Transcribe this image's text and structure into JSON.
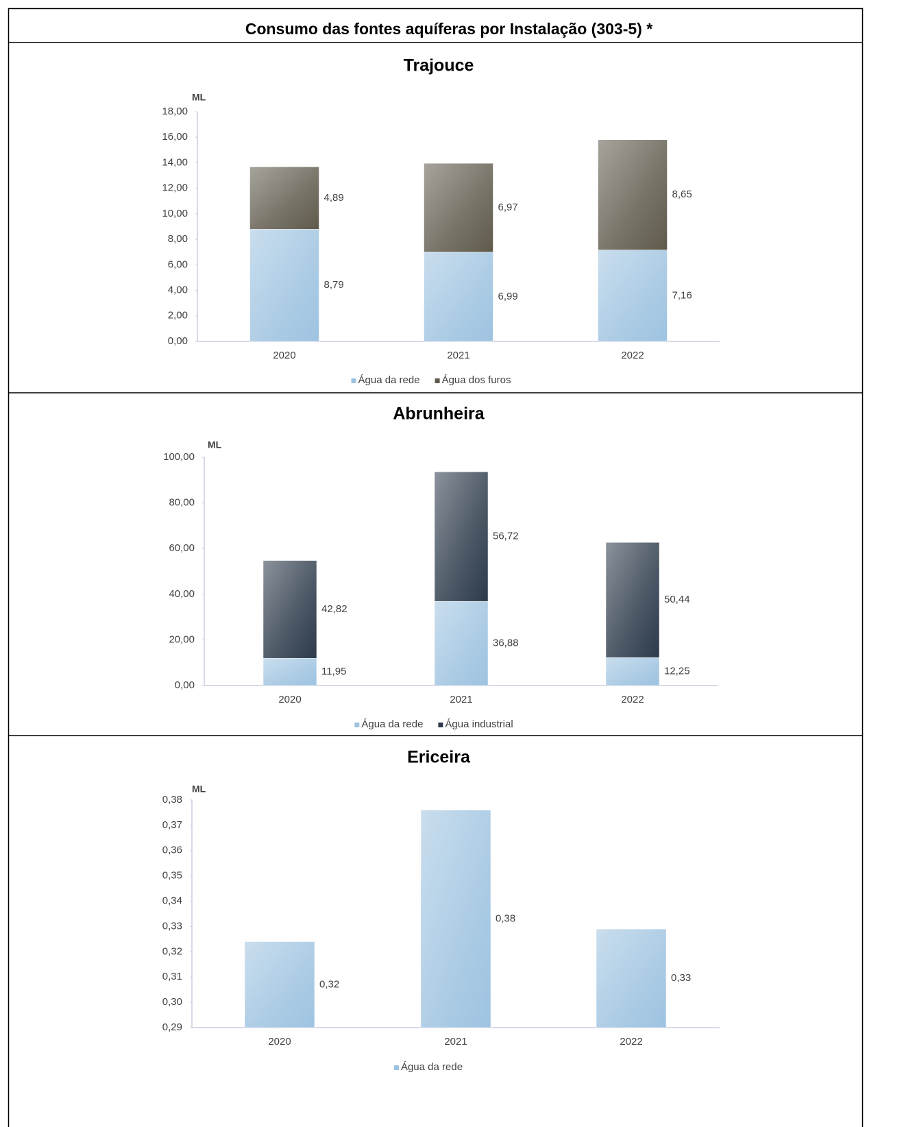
{
  "title": "Consumo das fontes aquíferas por Instalação (303-5) *",
  "chart_data": [
    {
      "type": "bar",
      "stacked": true,
      "title": "Trajouce",
      "y_label": "ML",
      "categories": [
        "2020",
        "2021",
        "2022"
      ],
      "series": [
        {
          "name": "Água da rede",
          "color": "#9ec3e0",
          "values": [
            8.79,
            6.99,
            7.16
          ],
          "value_labels": [
            "8,79",
            "6,99",
            "7,16"
          ]
        },
        {
          "name": "Água dos furos",
          "color": "#5f5a4c",
          "values": [
            4.89,
            6.97,
            8.65
          ],
          "value_labels": [
            "4,89",
            "6,97",
            "8,65"
          ]
        }
      ],
      "ylim": [
        0,
        18
      ],
      "yticks": [
        {
          "value": 0,
          "label": "0,00"
        },
        {
          "value": 2,
          "label": "2,00"
        },
        {
          "value": 4,
          "label": "4,00"
        },
        {
          "value": 6,
          "label": "6,00"
        },
        {
          "value": 8,
          "label": "8,00"
        },
        {
          "value": 10,
          "label": "10,00"
        },
        {
          "value": 12,
          "label": "12,00"
        },
        {
          "value": 14,
          "label": "14,00"
        },
        {
          "value": 16,
          "label": "16,00"
        },
        {
          "value": 18,
          "label": "18,00"
        }
      ],
      "legend": "bottom"
    },
    {
      "type": "bar",
      "stacked": true,
      "title": "Abrunheira",
      "y_label": "ML",
      "categories": [
        "2020",
        "2021",
        "2022"
      ],
      "series": [
        {
          "name": "Água da rede",
          "color": "#9ec3e0",
          "values": [
            11.95,
            36.88,
            12.25
          ],
          "value_labels": [
            "11,95",
            "36,88",
            "12,25"
          ]
        },
        {
          "name": "Água industrial",
          "color": "#2c3a4a",
          "values": [
            42.82,
            56.72,
            50.44
          ],
          "value_labels": [
            "42,82",
            "56,72",
            "50,44"
          ]
        }
      ],
      "ylim": [
        0,
        100
      ],
      "yticks": [
        {
          "value": 0,
          "label": "0,00"
        },
        {
          "value": 20,
          "label": "20,00"
        },
        {
          "value": 40,
          "label": "40,00"
        },
        {
          "value": 60,
          "label": "60,00"
        },
        {
          "value": 80,
          "label": "80,00"
        },
        {
          "value": 100,
          "label": "100,00"
        }
      ],
      "legend": "bottom"
    },
    {
      "type": "bar",
      "stacked": true,
      "title": "Ericeira",
      "y_label": "ML",
      "categories": [
        "2020",
        "2021",
        "2022"
      ],
      "series": [
        {
          "name": "Água da rede",
          "color": "#9ec3e0",
          "values": [
            0.324,
            0.376,
            0.329
          ],
          "value_labels": [
            "0,32",
            "0,38",
            "0,33"
          ]
        }
      ],
      "ylim": [
        0.29,
        0.38
      ],
      "yticks": [
        {
          "value": 0.29,
          "label": "0,29"
        },
        {
          "value": 0.3,
          "label": "0,30"
        },
        {
          "value": 0.31,
          "label": "0,31"
        },
        {
          "value": 0.32,
          "label": "0,32"
        },
        {
          "value": 0.33,
          "label": "0,33"
        },
        {
          "value": 0.34,
          "label": "0,34"
        },
        {
          "value": 0.35,
          "label": "0,35"
        },
        {
          "value": 0.36,
          "label": "0,36"
        },
        {
          "value": 0.37,
          "label": "0,37"
        },
        {
          "value": 0.38,
          "label": "0,38"
        }
      ],
      "legend": "bottom"
    }
  ]
}
